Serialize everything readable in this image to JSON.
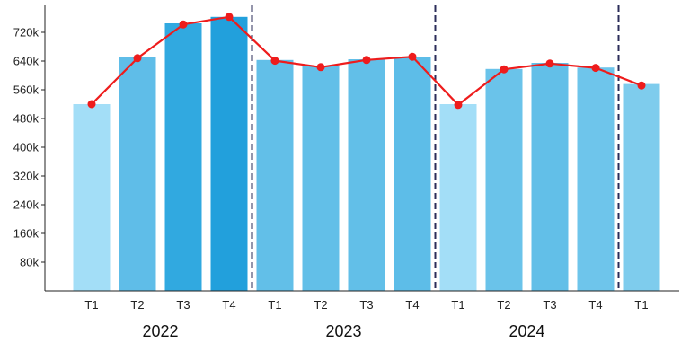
{
  "chart_data": {
    "type": "bar",
    "categories": [
      "T1",
      "T2",
      "T3",
      "T4",
      "T1",
      "T2",
      "T3",
      "T4",
      "T1",
      "T2",
      "T3",
      "T4",
      "T1"
    ],
    "groups": [
      {
        "label": "2022",
        "start": 0,
        "count": 4
      },
      {
        "label": "2023",
        "start": 4,
        "count": 4
      },
      {
        "label": "2024",
        "start": 8,
        "count": 5
      }
    ],
    "values": [
      520000,
      650000,
      745000,
      763000,
      643000,
      625000,
      645000,
      652000,
      520000,
      618000,
      635000,
      622000,
      576000
    ],
    "line_values": [
      520000,
      648000,
      742000,
      763000,
      641000,
      623000,
      643000,
      652000,
      518000,
      617000,
      633000,
      621000,
      572000
    ],
    "yticks": [
      80000,
      160000,
      240000,
      320000,
      400000,
      480000,
      560000,
      640000,
      720000
    ],
    "ytick_labels": [
      "80k",
      "160k",
      "240k",
      "320k",
      "400k",
      "480k",
      "560k",
      "640k",
      "720k"
    ],
    "ylim": [
      0,
      795000
    ],
    "separators_after_index": [
      3,
      7,
      11
    ],
    "grid": false,
    "colors": {
      "bars": [
        "#a3def7",
        "#5fbde8",
        "#31a9e0",
        "#22a0dc",
        "#62bfe8",
        "#62bfe8",
        "#62bfe8",
        "#5dbde8",
        "#a3def7",
        "#6ac3ea",
        "#62bfe8",
        "#6ec5eb",
        "#7ecced"
      ],
      "line": "#ee1c1c",
      "separator": "#2b2d5a",
      "axis": "#222222"
    }
  }
}
